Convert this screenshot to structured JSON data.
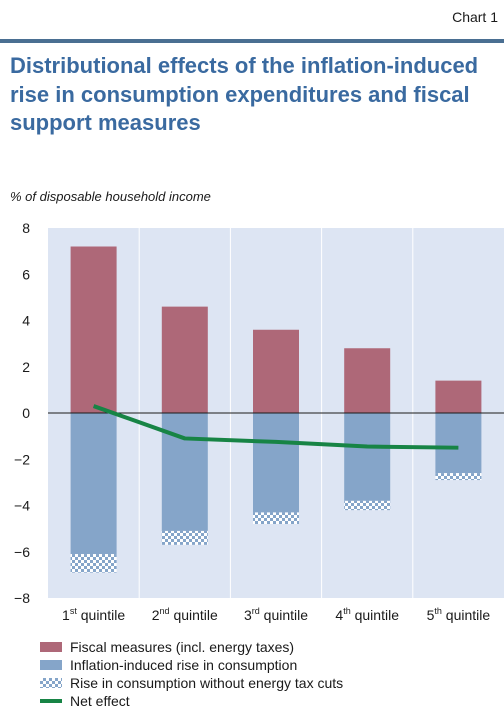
{
  "header": {
    "chart_label": "Chart 1",
    "title": "Distributional effects of the inflation-induced rise in consumption expenditures and fiscal support measures",
    "subtitle": "% of disposable household income"
  },
  "colors": {
    "title": "#3a6aa0",
    "top_rule": "#4a6f92",
    "plot_background": "#dde5f3",
    "fiscal": "#ae6878",
    "inflation": "#85a5c9",
    "net": "#178445"
  },
  "chart_data": {
    "type": "bar",
    "stacked": true,
    "title": "Distributional effects of the inflation-induced rise in consumption expenditures and fiscal support measures",
    "ylabel": "% of disposable household income",
    "ylim": [
      -8,
      8
    ],
    "yticks": [
      "8",
      "6",
      "4",
      "2",
      "0",
      "−2",
      "−4",
      "−6",
      "−8"
    ],
    "ytick_values": [
      8,
      6,
      4,
      2,
      0,
      -2,
      -4,
      -6,
      -8
    ],
    "categories": [
      {
        "num": "1",
        "sup": "st",
        "text": " quintile"
      },
      {
        "num": "2",
        "sup": "nd",
        "text": " quintile"
      },
      {
        "num": "3",
        "sup": "rd",
        "text": " quintile"
      },
      {
        "num": "4",
        "sup": "th",
        "text": " quintile"
      },
      {
        "num": "5",
        "sup": "th",
        "text": " quintile"
      }
    ],
    "series": [
      {
        "name": "Fiscal measures (incl. energy taxes)",
        "kind": "bar",
        "values": [
          7.2,
          4.6,
          3.6,
          2.8,
          1.4
        ]
      },
      {
        "name": "Inflation-induced rise in consumption",
        "kind": "bar",
        "values": [
          -6.1,
          -5.1,
          -4.3,
          -3.8,
          -2.6
        ]
      },
      {
        "name": "Rise in consumption without energy tax cuts",
        "kind": "bar-pattern",
        "values": [
          -0.8,
          -0.6,
          -0.5,
          -0.4,
          -0.3
        ]
      },
      {
        "name": "Net effect",
        "kind": "line",
        "values": [
          0.3,
          -1.1,
          -1.25,
          -1.45,
          -1.5
        ]
      }
    ],
    "grid": true,
    "legend_position": "bottom"
  }
}
